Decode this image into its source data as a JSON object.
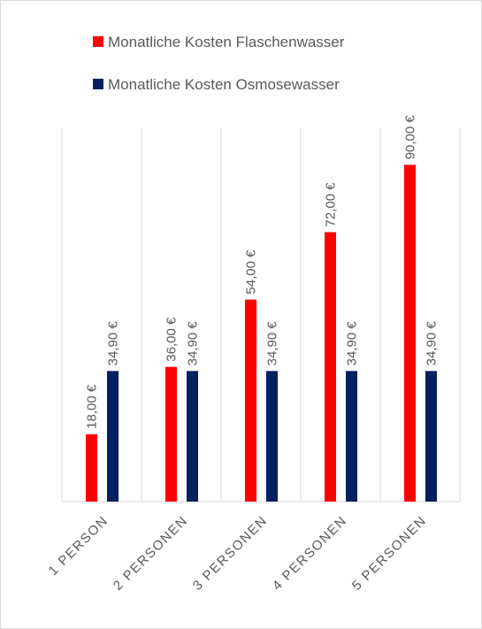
{
  "chart_data": {
    "type": "bar",
    "categories": [
      "1 PERSON",
      "2 PERSONEN",
      "3 PERSONEN",
      "4 PERSONEN",
      "5 PERSONEN"
    ],
    "series": [
      {
        "name": "Monatliche Kosten Flaschenwasser",
        "color": "#ff0000",
        "values": [
          18,
          36,
          54,
          72,
          90
        ],
        "value_labels": [
          "18,00 €",
          "36,00 €",
          "54,00 €",
          "72,00 €",
          "90,00 €"
        ]
      },
      {
        "name": "Monatliche Kosten Osmosewasser",
        "color": "#002060",
        "values": [
          34.9,
          34.9,
          34.9,
          34.9,
          34.9
        ],
        "value_labels": [
          "34,90 €",
          "34,90 €",
          "34,90 €",
          "34,90 €",
          "34,90 €"
        ]
      }
    ],
    "ylim": [
      0,
      100
    ],
    "grid": true
  }
}
